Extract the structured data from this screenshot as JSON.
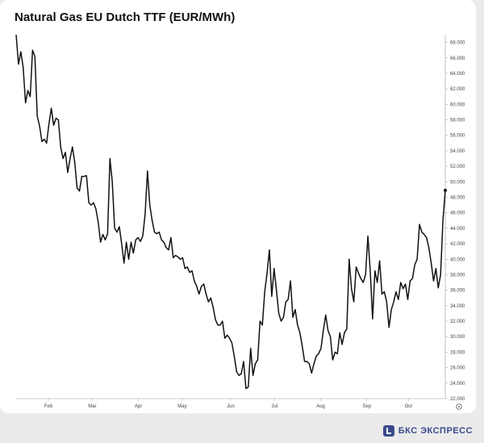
{
  "header": {
    "title": "Natural Gas EU Dutch TTF (EUR/MWh)"
  },
  "footer": {
    "brand": "БКС ЭКСПРЕСС"
  },
  "chart_data": {
    "type": "line",
    "title": "Natural Gas EU Dutch TTF (EUR/MWh)",
    "xlabel": "",
    "ylabel": "",
    "x_ticks": [
      "Feb",
      "Mar",
      "Apr",
      "May",
      "Jun",
      "Jul",
      "Aug",
      "Sep",
      "Oct"
    ],
    "y_ticks": [
      "22.000",
      "24.000",
      "26.000",
      "28.000",
      "30.000",
      "32.000",
      "34.000",
      "36.000",
      "38.000",
      "40.000",
      "42.000",
      "44.000",
      "46.000",
      "48.000",
      "50.000",
      "52.000",
      "54.000",
      "56.000",
      "58.000",
      "60.000",
      "62.000",
      "64.000",
      "66.000",
      "68.000"
    ],
    "ylim": [
      22,
      69
    ],
    "xlim": [
      0,
      186
    ],
    "x_tick_positions": [
      14,
      33,
      53,
      72,
      93,
      112,
      132,
      152,
      170
    ],
    "grid": false,
    "series": [
      {
        "color": "#111111",
        "values": [
          69.0,
          65.2,
          66.8,
          64.8,
          60.2,
          61.8,
          61.0,
          67.0,
          66.2,
          58.5,
          57.2,
          55.2,
          55.5,
          55.0,
          57.5,
          59.5,
          57.3,
          58.2,
          58.0,
          54.5,
          53.0,
          53.8,
          51.2,
          53.0,
          54.5,
          52.5,
          49.2,
          48.8,
          50.7,
          50.7,
          50.8,
          47.3,
          47.0,
          47.3,
          46.5,
          44.8,
          42.2,
          43.2,
          42.5,
          43.3,
          53.0,
          50.0,
          44.0,
          43.5,
          44.2,
          42.0,
          39.5,
          42.2,
          40.0,
          42.2,
          40.8,
          42.5,
          42.8,
          42.3,
          43.0,
          45.8,
          51.4,
          47.0,
          45.0,
          43.5,
          43.3,
          43.5,
          42.5,
          42.2,
          41.5,
          41.2,
          42.8,
          40.2,
          40.5,
          40.3,
          40.0,
          40.2,
          38.8,
          39.0,
          38.3,
          38.5,
          37.2,
          36.5,
          35.5,
          36.5,
          36.8,
          35.5,
          34.5,
          35.0,
          33.8,
          32.2,
          31.5,
          31.5,
          32.0,
          29.8,
          30.2,
          29.8,
          29.2,
          27.5,
          25.5,
          25.0,
          25.2,
          26.8,
          23.3,
          23.5,
          28.5,
          25.0,
          26.5,
          27.0,
          32.0,
          31.5,
          35.8,
          38.2,
          41.2,
          35.2,
          38.8,
          36.0,
          33.0,
          32.0,
          32.5,
          34.5,
          34.8,
          37.2,
          32.5,
          33.5,
          31.5,
          30.5,
          28.8,
          26.8,
          26.8,
          26.5,
          25.3,
          26.5,
          27.5,
          27.8,
          28.5,
          30.8,
          32.8,
          30.8,
          30.0,
          27.0,
          28.0,
          27.8,
          30.5,
          29.0,
          30.5,
          31.0,
          40.0,
          36.2,
          34.5,
          39.0,
          38.2,
          37.5,
          37.0,
          38.0,
          43.0,
          38.5,
          32.3,
          38.5,
          37.0,
          39.8,
          35.5,
          35.8,
          34.5,
          31.2,
          33.5,
          34.5,
          35.8,
          34.8,
          37.0,
          36.2,
          36.8,
          34.8,
          37.2,
          37.5,
          39.3,
          40.0,
          44.5,
          43.5,
          43.2,
          42.8,
          41.5,
          39.5,
          37.2,
          38.8,
          36.3,
          38.0,
          45.0,
          48.9
        ]
      }
    ]
  }
}
